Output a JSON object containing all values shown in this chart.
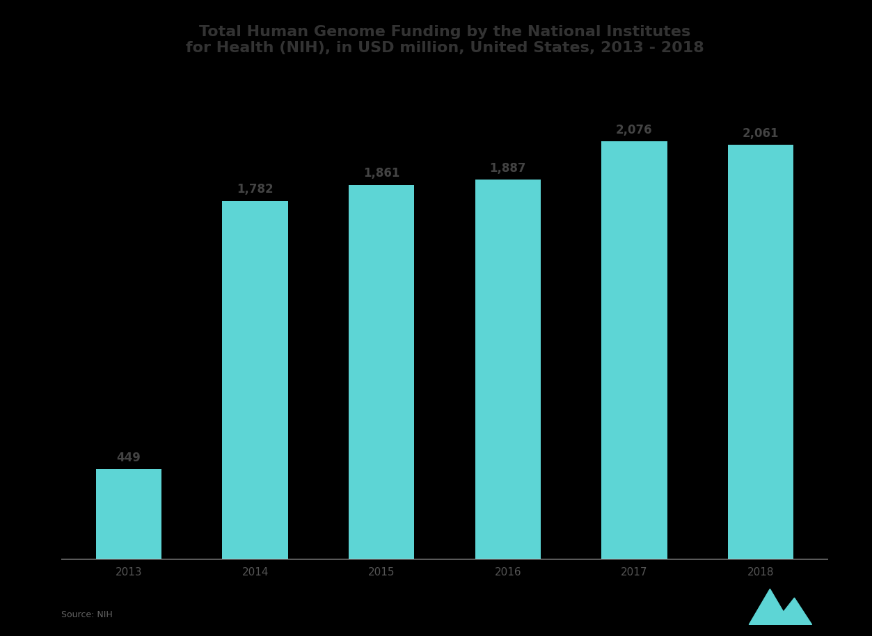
{
  "categories": [
    "2013",
    "2014",
    "2015",
    "2016",
    "2017",
    "2018"
  ],
  "values": [
    449,
    1782,
    1861,
    1887,
    2076,
    2061
  ],
  "bar_color": "#5DD5D5",
  "bar_labels": [
    "449",
    "1,782",
    "1,861",
    "1,887",
    "2,076",
    "2,061"
  ],
  "title_line1": "Total Human Genome Funding by the National Institutes",
  "title_line2": "for Health (NIH), in USD million, United States, 2013 - 2018",
  "background_color": "#000000",
  "plot_area_color": "#000000",
  "text_color": "#555555",
  "label_color": "#444444",
  "title_color": "#333333",
  "label_fontsize": 12,
  "title_fontsize": 16,
  "tick_fontsize": 11,
  "ylim": [
    0,
    2400
  ],
  "source_text": "Source: NIH",
  "logo_color": "#5DD5D5",
  "baseline_color": "#cccccc"
}
